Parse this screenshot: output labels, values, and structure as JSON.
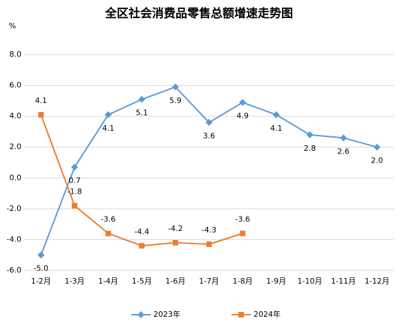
{
  "chart_data": {
    "type": "line",
    "title": "全区社会消费品零售总额增速走势图",
    "y_label": "%",
    "categories": [
      "1-2月",
      "1-3月",
      "1-4月",
      "1-5月",
      "1-6月",
      "1-7月",
      "1-8月",
      "1-9月",
      "1-10月",
      "1-11月",
      "1-12月"
    ],
    "series": [
      {
        "name": "2023年",
        "color": "#5b9bd5",
        "marker": "diamond",
        "values": [
          -5.0,
          0.7,
          4.1,
          5.1,
          5.9,
          3.6,
          4.9,
          4.1,
          2.8,
          2.6,
          2.0
        ],
        "value_labels": [
          "-5.0",
          "0.7",
          "4.1",
          "5.1",
          "5.9",
          "3.6",
          "4.9",
          "4.1",
          "2.8",
          "2.6",
          "2.0"
        ]
      },
      {
        "name": "2024年",
        "color": "#ed7d31",
        "marker": "square",
        "values": [
          4.1,
          -1.8,
          -3.6,
          -4.4,
          -4.2,
          -4.3,
          -3.6,
          null,
          null,
          null,
          null
        ],
        "value_labels": [
          "4.1",
          "-1.8",
          "-3.6",
          "-4.4",
          "-4.2",
          "-4.3",
          "-3.6",
          null,
          null,
          null,
          null
        ]
      }
    ],
    "ylim": [
      -6,
      8
    ],
    "yticks": [
      {
        "value": -6,
        "label": "-6.0"
      },
      {
        "value": -4,
        "label": "-4.0"
      },
      {
        "value": -2,
        "label": "-2.0"
      },
      {
        "value": 0,
        "label": "0.0"
      },
      {
        "value": 2,
        "label": "2.0"
      },
      {
        "value": 4,
        "label": "4.0"
      },
      {
        "value": 6,
        "label": "6.0"
      },
      {
        "value": 8,
        "label": "8.0"
      }
    ],
    "grid": true,
    "legend": "bottom"
  }
}
